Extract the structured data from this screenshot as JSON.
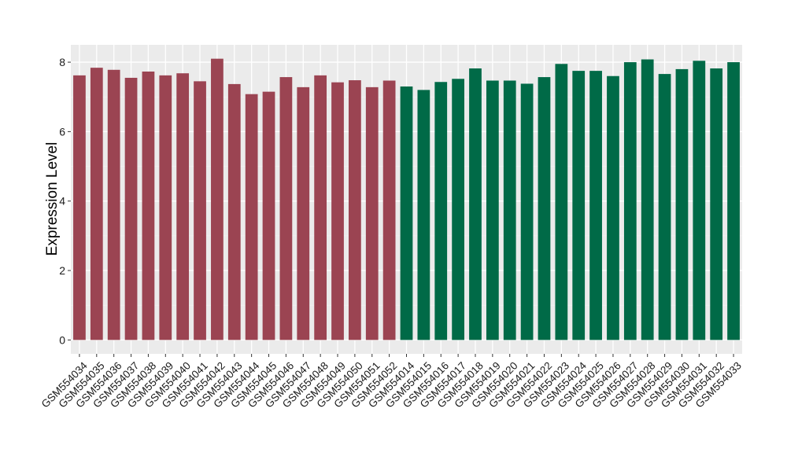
{
  "chart_data": {
    "type": "bar",
    "title": "",
    "xlabel": "",
    "ylabel": "Expression Level",
    "ylim": [
      -0.4,
      8.5
    ],
    "yticks": [
      0,
      2,
      4,
      6,
      8
    ],
    "grid": true,
    "legend": "none",
    "categories": [
      "GSM554034",
      "GSM554035",
      "GSM554036",
      "GSM554037",
      "GSM554038",
      "GSM554039",
      "GSM554040",
      "GSM554041",
      "GSM554042",
      "GSM554043",
      "GSM554044",
      "GSM554045",
      "GSM554046",
      "GSM554047",
      "GSM554048",
      "GSM554049",
      "GSM554050",
      "GSM554051",
      "GSM554052",
      "GSM554014",
      "GSM554015",
      "GSM554016",
      "GSM554017",
      "GSM554018",
      "GSM554019",
      "GSM554020",
      "GSM554021",
      "GSM554022",
      "GSM554023",
      "GSM554024",
      "GSM554025",
      "GSM554026",
      "GSM554027",
      "GSM554028",
      "GSM554029",
      "GSM554030",
      "GSM554031",
      "GSM554032",
      "GSM554033"
    ],
    "values": [
      7.62,
      7.84,
      7.78,
      7.55,
      7.73,
      7.62,
      7.68,
      7.45,
      8.1,
      7.37,
      7.08,
      7.15,
      7.57,
      7.28,
      7.62,
      7.42,
      7.48,
      7.28,
      7.47,
      7.3,
      7.2,
      7.43,
      7.52,
      7.82,
      7.47,
      7.47,
      7.38,
      7.57,
      7.95,
      7.75,
      7.75,
      7.6,
      8.0,
      8.08,
      7.66,
      7.8,
      8.04,
      7.82,
      8.0
    ],
    "groups": [
      {
        "color": "#9b4452",
        "count": 19
      },
      {
        "color": "#006a47",
        "count": 20
      }
    ],
    "colors": {
      "panel_background": "#ebebeb",
      "grid_major": "#ffffff",
      "grid_minor": "#f2f2f2",
      "axis_text": "#1a1a1a"
    }
  }
}
